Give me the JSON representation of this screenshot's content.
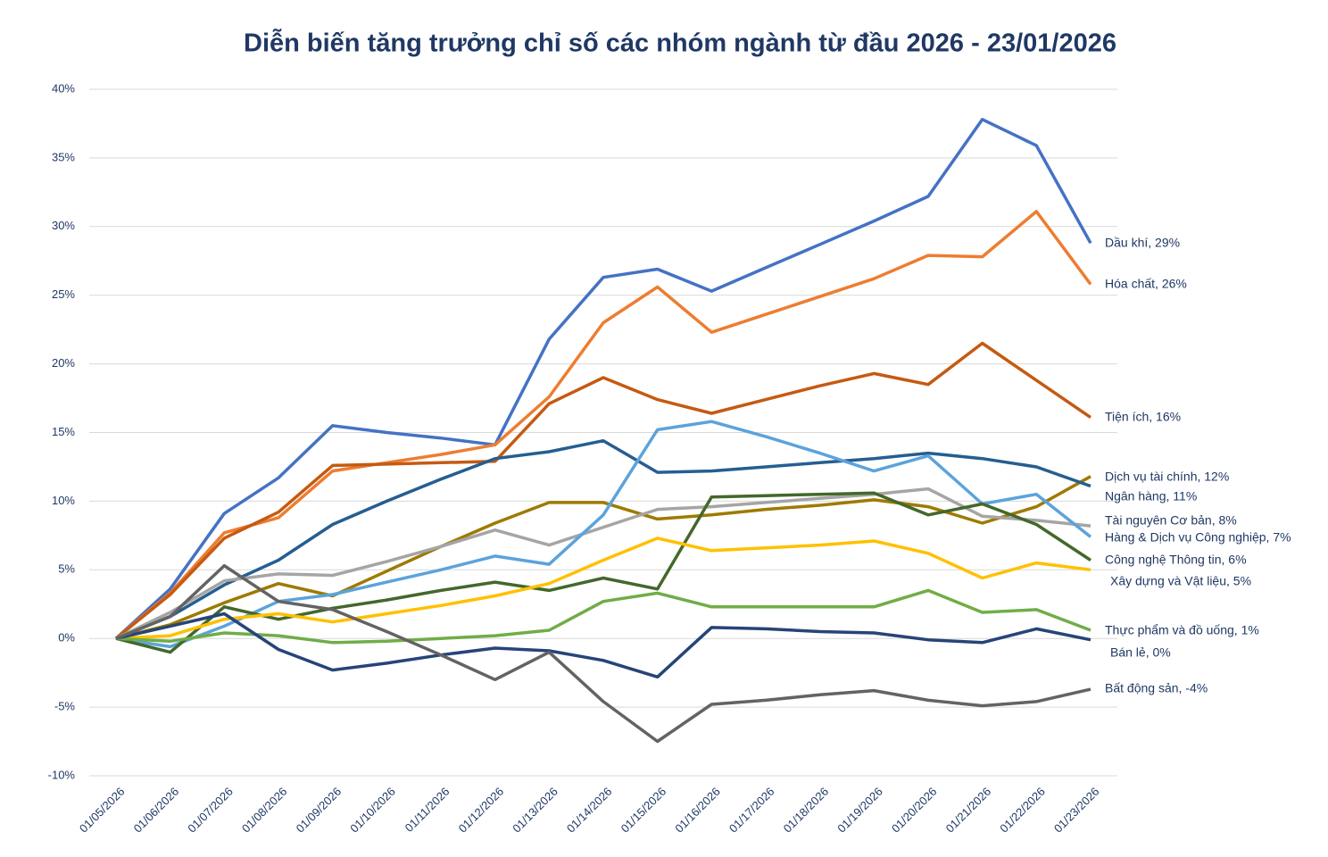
{
  "chart_data": {
    "type": "line",
    "title": "Diễn biến tăng trưởng chỉ số các nhóm ngành từ đầu 2026 - 23/01/2026",
    "categories": [
      "01/05/2026",
      "01/06/2026",
      "01/07/2026",
      "01/08/2026",
      "01/09/2026",
      "01/10/2026",
      "01/11/2026",
      "01/12/2026",
      "01/13/2026",
      "01/14/2026",
      "01/15/2026",
      "01/16/2026",
      "01/17/2026",
      "01/18/2026",
      "01/19/2026",
      "01/20/2026",
      "01/21/2026",
      "01/22/2026",
      "01/23/2026"
    ],
    "ylim": [
      -10,
      40
    ],
    "yticks": [
      {
        "value": -10,
        "label": "-10%"
      },
      {
        "value": -5,
        "label": "-5%"
      },
      {
        "value": 0,
        "label": "0%"
      },
      {
        "value": 5,
        "label": "5%"
      },
      {
        "value": 10,
        "label": "10%"
      },
      {
        "value": 15,
        "label": "15%"
      },
      {
        "value": 20,
        "label": "20%"
      },
      {
        "value": 25,
        "label": "25%"
      },
      {
        "value": 30,
        "label": "30%"
      },
      {
        "value": 35,
        "label": "35%"
      },
      {
        "value": 40,
        "label": "40%"
      }
    ],
    "grid": true,
    "series": [
      {
        "name": "Dầu khí, 29%",
        "color": "#4472c4",
        "values": [
          0,
          3.6,
          9.1,
          11.7,
          15.5,
          15.0,
          14.6,
          14.1,
          21.8,
          26.3,
          26.9,
          25.3,
          27.0,
          28.7,
          30.4,
          32.2,
          37.8,
          35.9,
          28.8
        ]
      },
      {
        "name": "Hóa chất, 26%",
        "color": "#ed7d31",
        "values": [
          0,
          3.3,
          7.7,
          8.8,
          12.2,
          12.8,
          13.4,
          14.1,
          17.6,
          23.0,
          25.6,
          22.3,
          23.6,
          24.9,
          26.2,
          27.9,
          27.8,
          31.1,
          25.8
        ]
      },
      {
        "name": "Tiện ích, 16%",
        "color": "#c55a11",
        "values": [
          0,
          3.2,
          7.3,
          9.2,
          12.6,
          12.7,
          12.8,
          12.9,
          17.1,
          19.0,
          17.4,
          16.4,
          17.4,
          18.4,
          19.3,
          18.5,
          21.5,
          18.8,
          16.1
        ]
      },
      {
        "name": "Dịch vụ tài chính, 12%",
        "color": "#9e7a00",
        "values": [
          0,
          1.0,
          2.6,
          4.0,
          3.1,
          4.9,
          6.7,
          8.4,
          9.9,
          9.9,
          8.7,
          9.0,
          9.4,
          9.7,
          10.1,
          9.6,
          8.4,
          9.6,
          11.8
        ]
      },
      {
        "name": "Ngân hàng, 11%",
        "color": "#255e91",
        "values": [
          0,
          1.6,
          3.9,
          5.7,
          8.3,
          10.0,
          11.6,
          13.1,
          13.6,
          14.4,
          12.1,
          12.2,
          12.5,
          12.8,
          13.1,
          13.5,
          13.1,
          12.5,
          11.1
        ]
      },
      {
        "name": "Tài nguyên Cơ bản, 8%",
        "color": "#a5a5a5",
        "values": [
          0,
          1.9,
          4.2,
          4.7,
          4.6,
          5.6,
          6.7,
          7.9,
          6.8,
          8.1,
          9.4,
          9.6,
          9.9,
          10.2,
          10.5,
          10.9,
          8.9,
          8.6,
          8.2
        ]
      },
      {
        "name": "Hàng & Dịch vụ Công nghiệp, 7%",
        "color": "#5ba3dc",
        "values": [
          0,
          -0.6,
          0.9,
          2.7,
          3.2,
          4.1,
          5.0,
          6.0,
          5.4,
          9.0,
          15.2,
          15.8,
          14.7,
          13.5,
          12.2,
          13.3,
          9.8,
          10.5,
          7.4
        ]
      },
      {
        "name": "Công nghệ Thông tin, 6%",
        "color": "#43682b",
        "values": [
          0,
          -1.0,
          2.3,
          1.4,
          2.2,
          2.8,
          3.5,
          4.1,
          3.5,
          4.4,
          3.6,
          10.3,
          10.4,
          10.5,
          10.6,
          9.0,
          9.8,
          8.3,
          5.7
        ]
      },
      {
        "name": "Xây dựng và Vật liệu, 5%",
        "color": "#ffc000",
        "values": [
          0,
          0.2,
          1.4,
          1.8,
          1.2,
          1.8,
          2.4,
          3.1,
          4.0,
          5.7,
          7.3,
          6.4,
          6.6,
          6.8,
          7.1,
          6.2,
          4.4,
          5.5,
          5.0
        ]
      },
      {
        "name": "Thực phẩm và đồ uống, 1%",
        "color": "#70ad47",
        "values": [
          0,
          -0.2,
          0.4,
          0.2,
          -0.3,
          -0.2,
          0.0,
          0.2,
          0.6,
          2.7,
          3.3,
          2.3,
          2.3,
          2.3,
          2.3,
          3.5,
          1.9,
          2.1,
          0.6
        ]
      },
      {
        "name": "Bán lẻ, 0%",
        "color": "#264478",
        "values": [
          0,
          0.9,
          1.8,
          -0.8,
          -2.3,
          -1.8,
          -1.2,
          -0.7,
          -0.9,
          -1.6,
          -2.8,
          0.8,
          0.7,
          0.5,
          0.4,
          -0.1,
          -0.3,
          0.7,
          -0.1
        ]
      },
      {
        "name": "Bất động sản, -4%",
        "color": "#636363",
        "values": [
          0,
          1.6,
          5.3,
          2.7,
          2.1,
          0.5,
          -1.2,
          -3.0,
          -1.0,
          -4.6,
          -7.5,
          -4.8,
          -4.5,
          -4.1,
          -3.8,
          -4.5,
          -4.9,
          -4.6,
          -3.7
        ]
      }
    ]
  }
}
